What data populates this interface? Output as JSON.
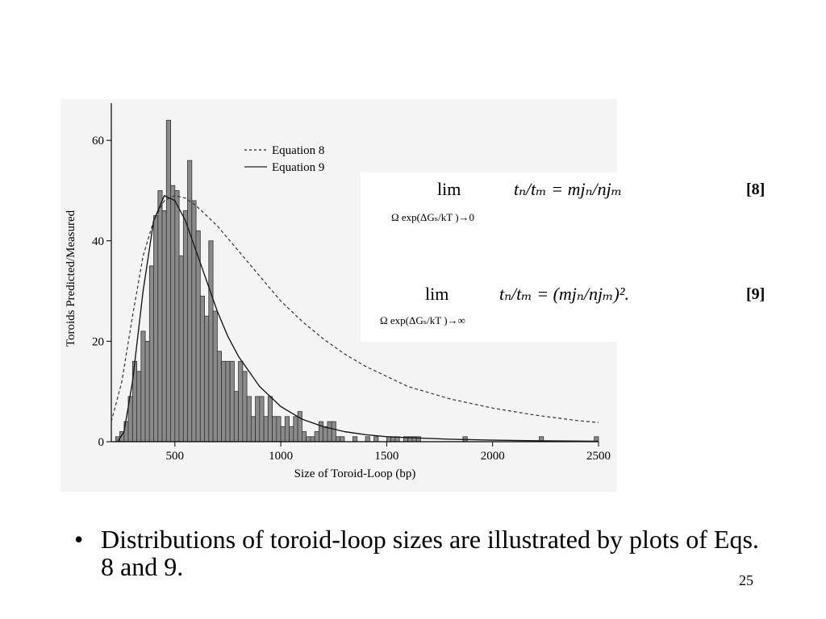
{
  "chart_data": {
    "type": "bar",
    "ylabel": "Toroids Predicted/Measured",
    "xlabel": "Size of Toroid-Loop (bp)",
    "xlim": [
      200,
      2500
    ],
    "ylim": [
      0,
      65
    ],
    "xticks": [
      500,
      1000,
      1500,
      2000,
      2500
    ],
    "yticks": [
      0,
      20,
      40,
      60
    ],
    "grid": false,
    "legend": {
      "position": "top-right",
      "entries": [
        {
          "label": "Equation 8",
          "style": "dashed"
        },
        {
          "label": "Equation 9",
          "style": "solid"
        }
      ]
    },
    "histogram": {
      "bin_width": 20,
      "bins": [
        {
          "x": 230,
          "y": 1
        },
        {
          "x": 250,
          "y": 2
        },
        {
          "x": 270,
          "y": 4
        },
        {
          "x": 290,
          "y": 9
        },
        {
          "x": 310,
          "y": 16
        },
        {
          "x": 330,
          "y": 14
        },
        {
          "x": 350,
          "y": 22
        },
        {
          "x": 370,
          "y": 20
        },
        {
          "x": 390,
          "y": 35
        },
        {
          "x": 410,
          "y": 45
        },
        {
          "x": 430,
          "y": 50
        },
        {
          "x": 450,
          "y": 46
        },
        {
          "x": 470,
          "y": 64
        },
        {
          "x": 490,
          "y": 51
        },
        {
          "x": 510,
          "y": 50
        },
        {
          "x": 530,
          "y": 37
        },
        {
          "x": 550,
          "y": 46
        },
        {
          "x": 570,
          "y": 56
        },
        {
          "x": 590,
          "y": 48
        },
        {
          "x": 610,
          "y": 42
        },
        {
          "x": 630,
          "y": 29
        },
        {
          "x": 650,
          "y": 25
        },
        {
          "x": 670,
          "y": 40
        },
        {
          "x": 690,
          "y": 26
        },
        {
          "x": 710,
          "y": 18
        },
        {
          "x": 730,
          "y": 16
        },
        {
          "x": 750,
          "y": 16
        },
        {
          "x": 770,
          "y": 16
        },
        {
          "x": 790,
          "y": 10
        },
        {
          "x": 810,
          "y": 16
        },
        {
          "x": 830,
          "y": 14
        },
        {
          "x": 850,
          "y": 9
        },
        {
          "x": 870,
          "y": 5
        },
        {
          "x": 890,
          "y": 9
        },
        {
          "x": 910,
          "y": 9
        },
        {
          "x": 930,
          "y": 5
        },
        {
          "x": 950,
          "y": 9
        },
        {
          "x": 970,
          "y": 5
        },
        {
          "x": 990,
          "y": 5
        },
        {
          "x": 1010,
          "y": 3
        },
        {
          "x": 1030,
          "y": 5
        },
        {
          "x": 1050,
          "y": 3
        },
        {
          "x": 1070,
          "y": 5
        },
        {
          "x": 1090,
          "y": 6
        },
        {
          "x": 1110,
          "y": 2
        },
        {
          "x": 1130,
          "y": 1
        },
        {
          "x": 1150,
          "y": 1
        },
        {
          "x": 1170,
          "y": 2
        },
        {
          "x": 1190,
          "y": 4
        },
        {
          "x": 1210,
          "y": 3
        },
        {
          "x": 1230,
          "y": 4
        },
        {
          "x": 1250,
          "y": 4
        },
        {
          "x": 1270,
          "y": 1
        },
        {
          "x": 1290,
          "y": 1
        },
        {
          "x": 1350,
          "y": 1
        },
        {
          "x": 1410,
          "y": 1
        },
        {
          "x": 1450,
          "y": 1
        },
        {
          "x": 1510,
          "y": 1
        },
        {
          "x": 1530,
          "y": 1
        },
        {
          "x": 1550,
          "y": 1
        },
        {
          "x": 1590,
          "y": 1
        },
        {
          "x": 1610,
          "y": 1
        },
        {
          "x": 1630,
          "y": 1
        },
        {
          "x": 1650,
          "y": 1
        },
        {
          "x": 1870,
          "y": 1
        },
        {
          "x": 2230,
          "y": 1
        },
        {
          "x": 2490,
          "y": 1
        }
      ]
    },
    "series": [
      {
        "name": "Equation 8",
        "style": "dashed",
        "x": [
          200,
          250,
          300,
          350,
          400,
          450,
          500,
          550,
          600,
          650,
          700,
          750,
          800,
          900,
          1000,
          1100,
          1200,
          1300,
          1400,
          1500,
          1600,
          1800,
          2000,
          2200,
          2400,
          2500
        ],
        "y": [
          4,
          12,
          25,
          37,
          44,
          48,
          49,
          48.5,
          47,
          45,
          43,
          40.5,
          38,
          33,
          28,
          24,
          20.5,
          17.5,
          15,
          13,
          11,
          8.5,
          6.7,
          5.3,
          4.2,
          3.8
        ]
      },
      {
        "name": "Equation 9",
        "style": "solid",
        "x": [
          230,
          260,
          300,
          350,
          400,
          450,
          500,
          550,
          600,
          650,
          700,
          750,
          800,
          900,
          1000,
          1100,
          1200,
          1300,
          1400,
          1500,
          1600,
          1800,
          2000,
          2200,
          2500
        ],
        "y": [
          0,
          2,
          12,
          30,
          44,
          49,
          48,
          44,
          38,
          32,
          26,
          21,
          17,
          11,
          7,
          4.5,
          3,
          2,
          1.4,
          1,
          0.8,
          0.5,
          0.3,
          0.2,
          0.1
        ]
      }
    ]
  },
  "equations": [
    {
      "lim": "lim",
      "expr": "tₙ/tₘ = mjₙ/njₘ",
      "sub": "Ω exp(ΔGₛ/kT )→0",
      "tag": "[8]"
    },
    {
      "lim": "lim",
      "expr": "tₙ/tₘ = (mjₙ/njₘ)².",
      "sub": "Ω exp(ΔGₛ/kT )→∞",
      "tag": "[9]"
    }
  ],
  "bullet": {
    "marker": "•",
    "text": "Distributions of toroid-loop sizes are illustrated by plots of Eqs. 8 and 9."
  },
  "page_number": "25"
}
